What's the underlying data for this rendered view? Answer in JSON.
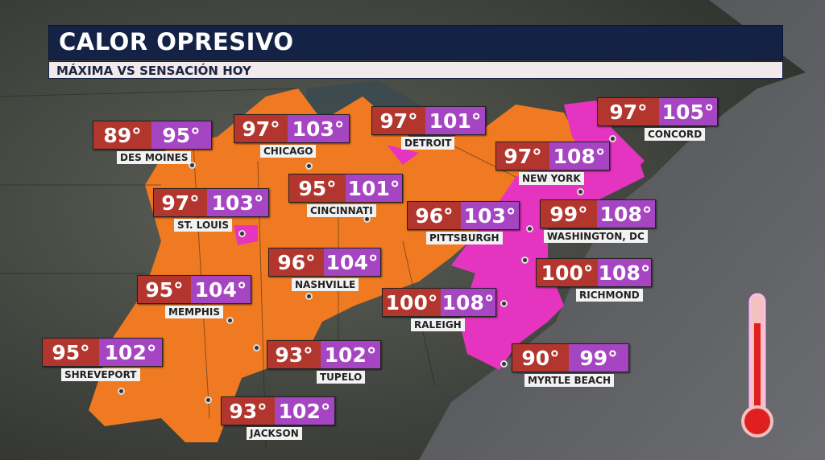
{
  "header": {
    "title": "CALOR OPRESIVO",
    "subtitle": "MÁXIMA VS SENSACIÓN HOY"
  },
  "colors": {
    "max_temp": "#b2362d",
    "heat_index": "#a645c2",
    "heat_advisory": "#f07a22",
    "excessive_heat": "#e535c0",
    "title_bg": "#142345"
  },
  "cities": [
    {
      "name": "DES MOINES",
      "max": "89°",
      "feels": "95°"
    },
    {
      "name": "CHICAGO",
      "max": "97°",
      "feels": "103°"
    },
    {
      "name": "DETROIT",
      "max": "97°",
      "feels": "101°"
    },
    {
      "name": "CONCORD",
      "max": "97°",
      "feels": "105°"
    },
    {
      "name": "NEW YORK",
      "max": "97°",
      "feels": "108°"
    },
    {
      "name": "CINCINNATI",
      "max": "95°",
      "feels": "101°"
    },
    {
      "name": "ST. LOUIS",
      "max": "97°",
      "feels": "103°"
    },
    {
      "name": "PITTSBURGH",
      "max": "96°",
      "feels": "103°"
    },
    {
      "name": "WASHINGTON, DC",
      "max": "99°",
      "feels": "108°"
    },
    {
      "name": "NASHVILLE",
      "max": "96°",
      "feels": "104°"
    },
    {
      "name": "RICHMOND",
      "max": "100°",
      "feels": "108°"
    },
    {
      "name": "MEMPHIS",
      "max": "95°",
      "feels": "104°"
    },
    {
      "name": "RALEIGH",
      "max": "100°",
      "feels": "108°"
    },
    {
      "name": "SHREVEPORT",
      "max": "95°",
      "feels": "102°"
    },
    {
      "name": "TUPELO",
      "max": "93°",
      "feels": "102°"
    },
    {
      "name": "MYRTLE BEACH",
      "max": "90°",
      "feels": "99°"
    },
    {
      "name": "JACKSON",
      "max": "93°",
      "feels": "102°"
    }
  ]
}
